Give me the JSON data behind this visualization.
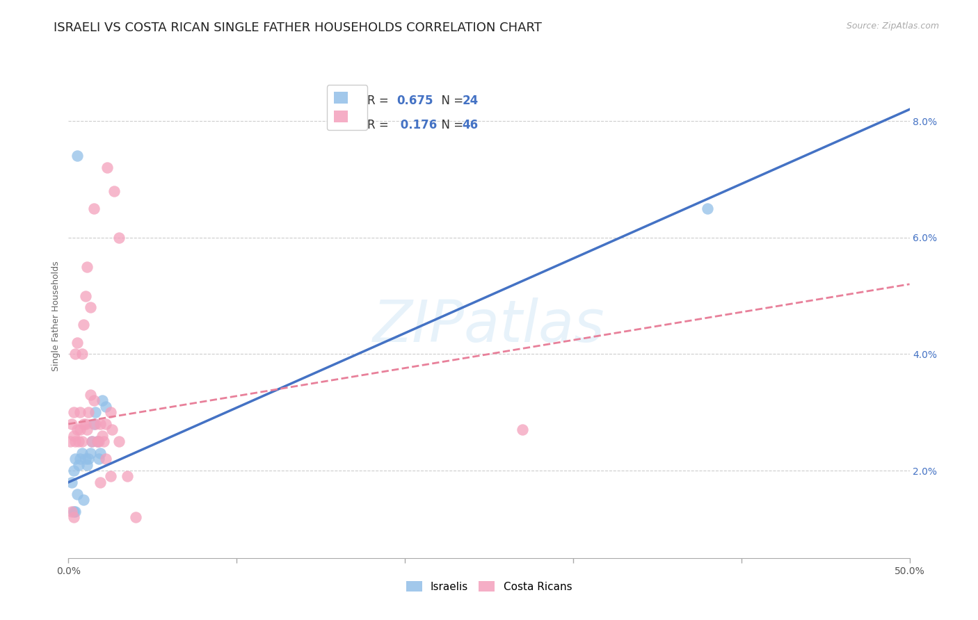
{
  "title": "ISRAELI VS COSTA RICAN SINGLE FATHER HOUSEHOLDS CORRELATION CHART",
  "source": "Source: ZipAtlas.com",
  "ylabel": "Single Father Households",
  "xlim": [
    0.0,
    0.5
  ],
  "ylim": [
    0.005,
    0.088
  ],
  "watermark_text": "ZIPatlas",
  "legend_r1": "R = 0.675",
  "legend_n1": "N = 24",
  "legend_r2": "R =  0.176",
  "legend_n2": "N = 46",
  "israelis_color": "#92bfe8",
  "costa_ricans_color": "#f4a0bc",
  "israeli_line_color": "#4472c4",
  "costa_rican_line_color": "#e8809a",
  "grid_color": "#cccccc",
  "background_color": "#ffffff",
  "title_fontsize": 13,
  "axis_label_fontsize": 9,
  "tick_fontsize": 10,
  "source_fontsize": 9,
  "israelis_x": [
    0.002,
    0.003,
    0.004,
    0.005,
    0.006,
    0.007,
    0.008,
    0.009,
    0.01,
    0.011,
    0.012,
    0.013,
    0.014,
    0.015,
    0.016,
    0.017,
    0.018,
    0.019,
    0.02,
    0.022,
    0.003,
    0.004,
    0.005,
    0.38
  ],
  "israelis_y": [
    0.018,
    0.02,
    0.022,
    0.016,
    0.021,
    0.022,
    0.023,
    0.015,
    0.022,
    0.021,
    0.022,
    0.023,
    0.025,
    0.028,
    0.03,
    0.025,
    0.022,
    0.023,
    0.032,
    0.031,
    0.013,
    0.013,
    0.074,
    0.065
  ],
  "costa_ricans_x": [
    0.001,
    0.002,
    0.003,
    0.003,
    0.004,
    0.004,
    0.005,
    0.005,
    0.006,
    0.007,
    0.007,
    0.008,
    0.008,
    0.009,
    0.009,
    0.01,
    0.01,
    0.011,
    0.011,
    0.012,
    0.013,
    0.013,
    0.014,
    0.015,
    0.015,
    0.016,
    0.017,
    0.018,
    0.019,
    0.019,
    0.02,
    0.021,
    0.022,
    0.022,
    0.023,
    0.025,
    0.025,
    0.026,
    0.027,
    0.03,
    0.03,
    0.035,
    0.04,
    0.27,
    0.002,
    0.003
  ],
  "costa_ricans_y": [
    0.025,
    0.028,
    0.026,
    0.03,
    0.025,
    0.04,
    0.027,
    0.042,
    0.025,
    0.027,
    0.03,
    0.025,
    0.04,
    0.028,
    0.045,
    0.05,
    0.028,
    0.027,
    0.055,
    0.03,
    0.033,
    0.048,
    0.025,
    0.032,
    0.065,
    0.028,
    0.025,
    0.025,
    0.028,
    0.018,
    0.026,
    0.025,
    0.028,
    0.022,
    0.072,
    0.019,
    0.03,
    0.027,
    0.068,
    0.025,
    0.06,
    0.019,
    0.012,
    0.027,
    0.013,
    0.012
  ],
  "isr_line_x": [
    0.0,
    0.5
  ],
  "isr_line_y": [
    0.018,
    0.082
  ],
  "cr_line_x": [
    0.0,
    0.5
  ],
  "cr_line_y": [
    0.028,
    0.052
  ]
}
